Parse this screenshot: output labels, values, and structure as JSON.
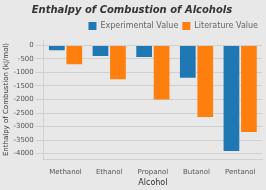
{
  "chart_data": {
    "type": "bar",
    "title": "Enthalpy of Combustion of Alcohols",
    "xlabel": "Alcohol",
    "ylabel": "Enthalpy of Combustion (kJ/mol)",
    "categories": [
      "Methanol",
      "Ethanol",
      "Propanol",
      "Butanol",
      "Pentanol"
    ],
    "series": [
      {
        "name": "Experimental Value",
        "color": "#1F77B4",
        "values": [
          -180,
          -390,
          -430,
          -1200,
          -3900
        ]
      },
      {
        "name": "Literature Value",
        "color": "#FF7F0E",
        "values": [
          -700,
          -1250,
          -2000,
          -2650,
          -3200
        ]
      }
    ],
    "ylim": [
      -4200,
      200
    ],
    "yticks": [
      0,
      -500,
      -1000,
      -1500,
      -2000,
      -2500,
      -3000,
      -3500,
      -4000
    ],
    "grid": true,
    "legend": "upper right"
  }
}
